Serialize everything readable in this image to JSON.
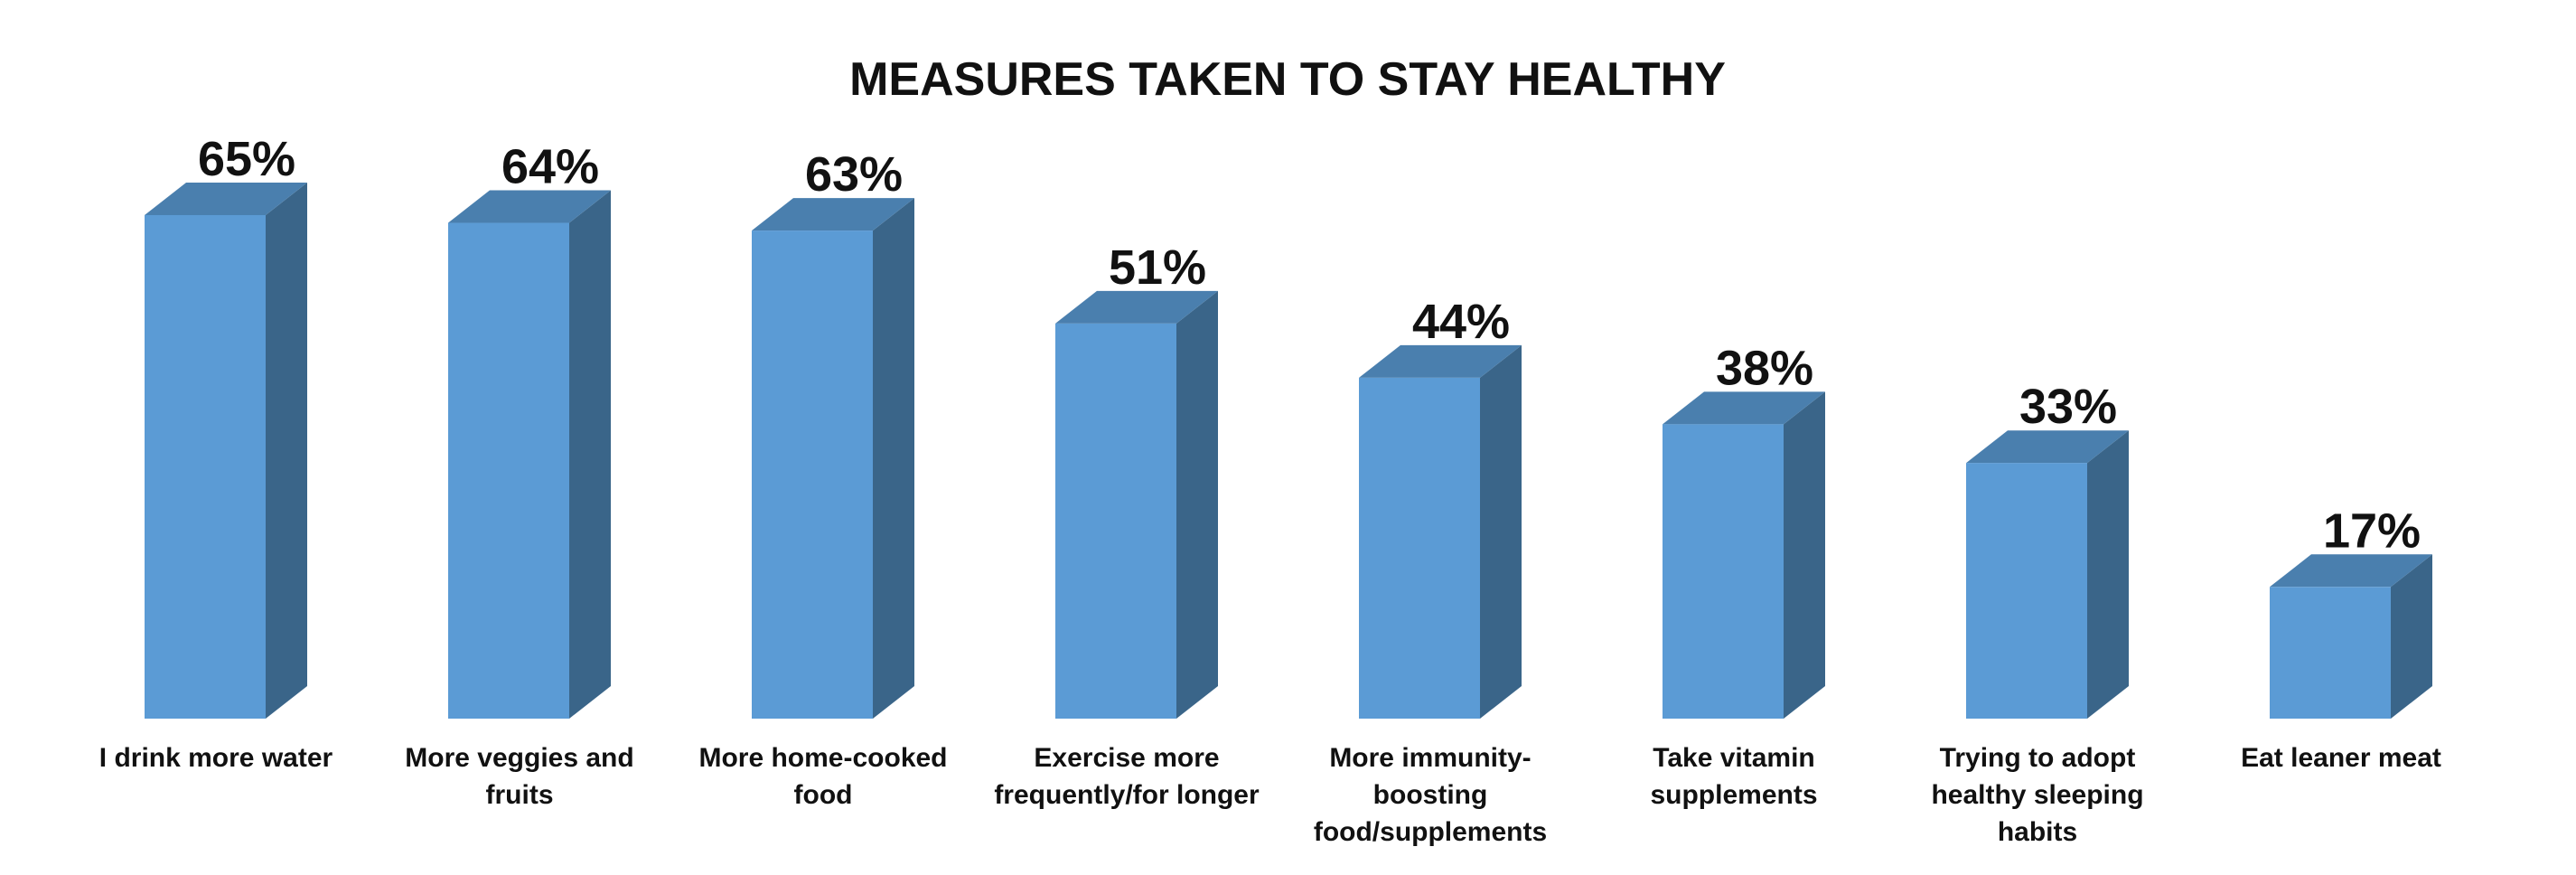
{
  "chart_data": {
    "type": "bar",
    "title": "MEASURES TAKEN TO STAY HEALTHY",
    "xlabel": "",
    "ylabel": "",
    "ylim": [
      0,
      70
    ],
    "grid": false,
    "legend": "none",
    "style": "3d-column",
    "categories": [
      "I drink more water",
      "More veggies and fruits",
      "More home-cooked food",
      "Exercise more frequently/for longer",
      "More immunity-boosting food/supplements",
      "Take vitamin supplements",
      "Trying to adopt healthy sleeping habits",
      "Eat leaner meat"
    ],
    "category_lines": [
      [
        "I drink more water"
      ],
      [
        "More veggies and",
        "fruits"
      ],
      [
        "More home-cooked",
        "food"
      ],
      [
        "Exercise more",
        "frequently/for longer"
      ],
      [
        "More immunity-",
        "boosting",
        "food/supplements"
      ],
      [
        "Take vitamin",
        "supplements"
      ],
      [
        "Trying to adopt",
        "healthy sleeping",
        "habits"
      ],
      [
        "Eat leaner meat"
      ]
    ],
    "values": [
      65,
      64,
      63,
      51,
      44,
      38,
      33,
      17
    ],
    "data_labels": [
      "65%",
      "64%",
      "63%",
      "51%",
      "44%",
      "38%",
      "33%",
      "17%"
    ],
    "colors": {
      "front": "#5B9BD5",
      "side": "#3A6589",
      "top": "#4A7FAE"
    }
  }
}
